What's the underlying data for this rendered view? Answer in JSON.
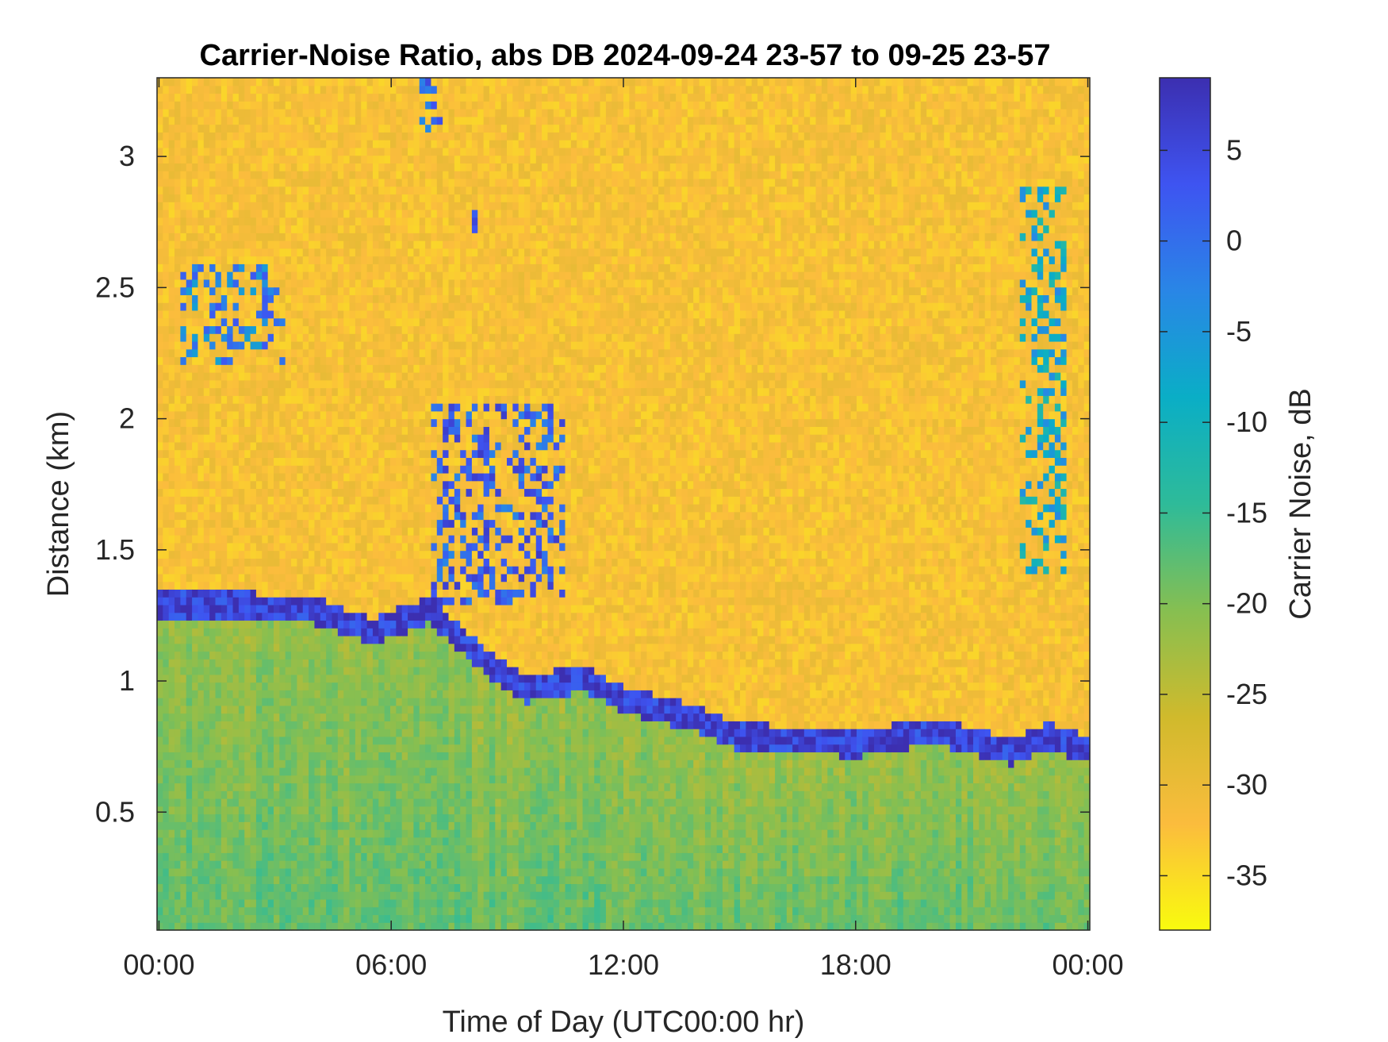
{
  "chart_data": {
    "type": "heatmap",
    "title": "Carrier-Noise Ratio, abs DB 2024-09-24 23-57 to 09-25 23-57",
    "xlabel": "Time of Day (UTC00:00 hr)",
    "ylabel": "Distance (km)",
    "colorbar_label": "Carrier Noise, dB",
    "x_ticks": [
      {
        "value": 0,
        "label": "00:00"
      },
      {
        "value": 6,
        "label": "06:00"
      },
      {
        "value": 12,
        "label": "12:00"
      },
      {
        "value": 18,
        "label": "18:00"
      },
      {
        "value": 24,
        "label": "00:00"
      }
    ],
    "y_ticks": [
      {
        "value": 0.5,
        "label": "0.5"
      },
      {
        "value": 1,
        "label": "1"
      },
      {
        "value": 1.5,
        "label": "1.5"
      },
      {
        "value": 2,
        "label": "2"
      },
      {
        "value": 2.5,
        "label": "2.5"
      },
      {
        "value": 3,
        "label": "3"
      }
    ],
    "colorbar_ticks": [
      {
        "value": 5,
        "label": "5"
      },
      {
        "value": 0,
        "label": "0"
      },
      {
        "value": -5,
        "label": "-5"
      },
      {
        "value": -10,
        "label": "-10"
      },
      {
        "value": -15,
        "label": "-15"
      },
      {
        "value": -20,
        "label": "-20"
      },
      {
        "value": -25,
        "label": "-25"
      },
      {
        "value": -30,
        "label": "-30"
      },
      {
        "value": -35,
        "label": "-35"
      }
    ],
    "xlim": [
      -0.05,
      24.05
    ],
    "ylim": [
      0.05,
      3.3
    ],
    "clim": [
      -38,
      9
    ],
    "colormap": "parula-reversed",
    "colormap_stops": [
      "#f9fb0e",
      "#fbbc3d",
      "#d0ba2c",
      "#86bf51",
      "#2ebb99",
      "#0aaec6",
      "#2986e6",
      "#3e54f1",
      "#3c2fb0"
    ],
    "grid": false,
    "background_cnr_db": -32,
    "boundary_layer": {
      "description": "high-CNR (greenish/teal) region near the ground whose top descends through the day",
      "time_hr": [
        0,
        2,
        4,
        5.5,
        7,
        8.5,
        9.5,
        11,
        12,
        14,
        15,
        18,
        20,
        22,
        23,
        24
      ],
      "top_km": [
        1.3,
        1.3,
        1.28,
        1.2,
        1.28,
        1.08,
        0.98,
        1.02,
        0.94,
        0.86,
        0.8,
        0.77,
        0.82,
        0.74,
        0.8,
        0.75
      ],
      "cnr_db": -18,
      "top_edge_cnr_db": 6
    },
    "elevated_features": [
      {
        "time_hr": [
          0.5,
          3.2
        ],
        "distance_km": [
          2.2,
          2.6
        ],
        "cnr_db": -2
      },
      {
        "time_hr": [
          7.0,
          10.5
        ],
        "distance_km": [
          1.3,
          2.05
        ],
        "cnr_db": 2
      },
      {
        "time_hr": [
          6.8,
          7.4
        ],
        "distance_km": [
          3.1,
          3.3
        ],
        "cnr_db": 0
      },
      {
        "time_hr": [
          8.1,
          8.3
        ],
        "distance_km": [
          2.65,
          2.8
        ],
        "cnr_db": 2
      },
      {
        "time_hr": [
          22.2,
          23.4
        ],
        "distance_km": [
          1.4,
          2.9
        ],
        "cnr_db": -8
      }
    ]
  }
}
